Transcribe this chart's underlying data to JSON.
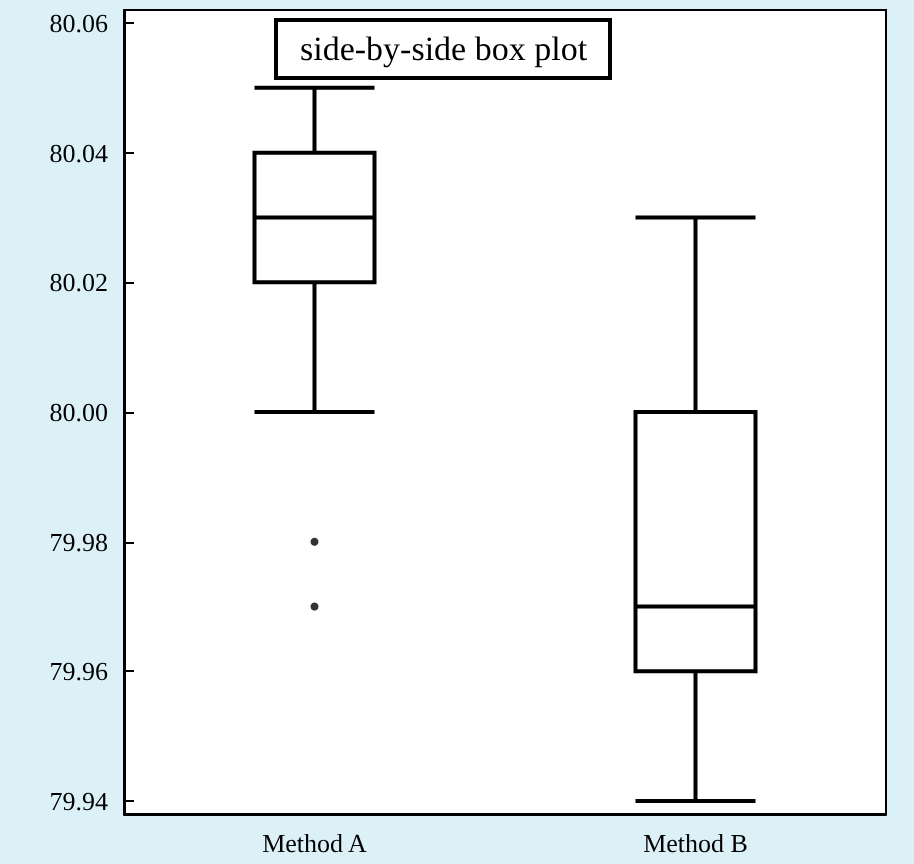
{
  "chart_data": {
    "type": "box",
    "title": "side-by-side box plot",
    "categories": [
      "Method A",
      "Method B"
    ],
    "boxes": [
      {
        "low": 80.0,
        "q1": 80.02,
        "median": 80.03,
        "q3": 80.04,
        "high": 80.05,
        "outliers": [
          79.98,
          79.97
        ]
      },
      {
        "low": 79.94,
        "q1": 79.96,
        "median": 79.97,
        "q3": 80.0,
        "high": 80.03
      }
    ],
    "color": "#000000",
    "ylim": [
      79.938,
      80.062
    ],
    "yticks": [
      {
        "value": 79.94,
        "label": "79.94"
      },
      {
        "value": 79.96,
        "label": "79.96"
      },
      {
        "value": 79.98,
        "label": "79.98"
      },
      {
        "value": 80.0,
        "label": "80.00"
      },
      {
        "value": 80.02,
        "label": "80.02"
      },
      {
        "value": 80.04,
        "label": "80.04"
      },
      {
        "value": 80.06,
        "label": "80.06"
      }
    ],
    "grid": false
  }
}
